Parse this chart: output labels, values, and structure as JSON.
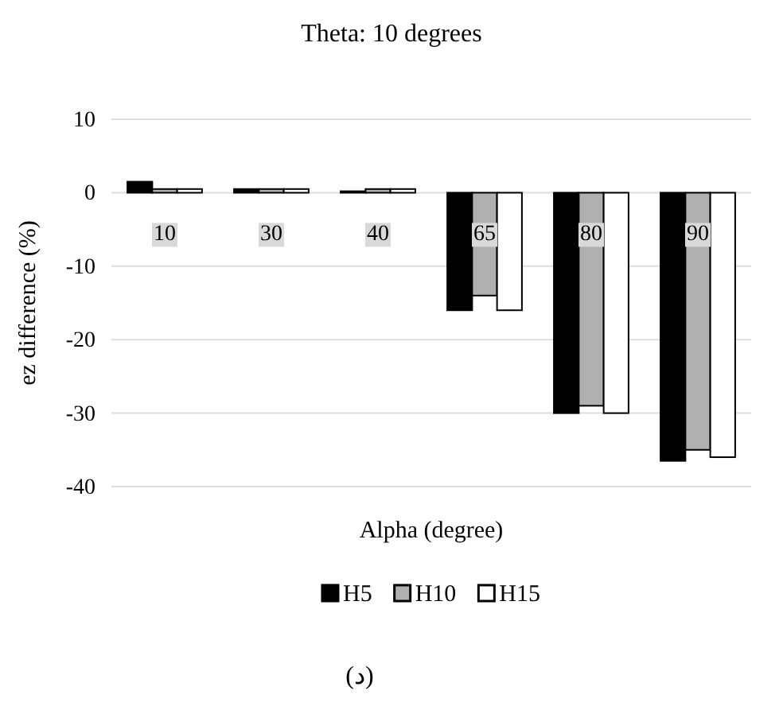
{
  "chart_data": {
    "type": "bar",
    "title": "Theta: 10 degrees",
    "xlabel": "Alpha (degree)",
    "ylabel": "ez difference (%)",
    "categories": [
      "10",
      "30",
      "40",
      "65",
      "80",
      "90"
    ],
    "series": [
      {
        "name": "H5",
        "color": "#000000",
        "values": [
          1.5,
          0.5,
          0.2,
          -16,
          -30,
          -36.5
        ]
      },
      {
        "name": "H10",
        "color": "#b0b0b0",
        "values": [
          0.5,
          0.5,
          0.5,
          -14,
          -29,
          -35
        ]
      },
      {
        "name": "H15",
        "color": "#ffffff",
        "values": [
          0.5,
          0.5,
          0.5,
          -16,
          -30,
          -36
        ]
      }
    ],
    "ylim": [
      -40,
      10
    ],
    "yticks": [
      -40,
      -30,
      -20,
      -10,
      0,
      10
    ],
    "grid": "y",
    "legend": "bottom",
    "annotations": [
      "(د)"
    ]
  }
}
